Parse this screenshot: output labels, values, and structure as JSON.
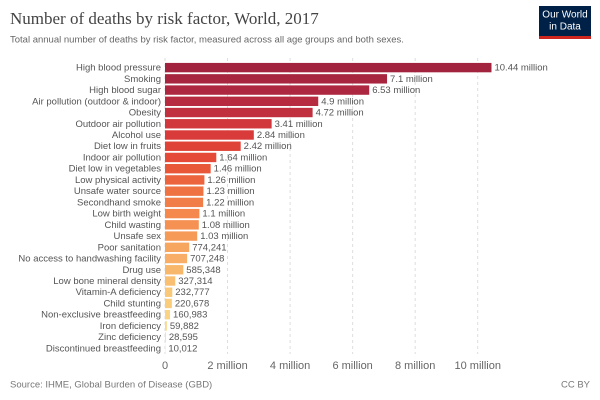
{
  "chart_data": {
    "type": "hbar",
    "title": "Number of deaths by risk factor, World, 2017",
    "subtitle": "Total annual number of deaths by risk factor, measured across all age groups and both sexes.",
    "source": "Source: IHME, Global Burden of Disease (GBD)",
    "license": "CC BY",
    "logo": [
      "Our World",
      "in Data"
    ],
    "categories": [
      "High blood pressure",
      "Smoking",
      "High blood sugar",
      "Air pollution (outdoor & indoor)",
      "Obesity",
      "Outdoor air pollution",
      "Alcohol use",
      "Diet low in fruits",
      "Indoor air pollution",
      "Diet low in vegetables",
      "Low physical activity",
      "Unsafe water source",
      "Secondhand smoke",
      "Low birth weight",
      "Child wasting",
      "Unsafe sex",
      "Poor sanitation",
      "No access to handwashing facility",
      "Drug use",
      "Low bone mineral density",
      "Vitamin-A deficiency",
      "Child stunting",
      "Non-exclusive breastfeeding",
      "Iron deficiency",
      "Zinc deficiency",
      "Discontinued breastfeeding"
    ],
    "values": [
      10440000,
      7100000,
      6530000,
      4900000,
      4720000,
      3410000,
      2840000,
      2420000,
      1640000,
      1460000,
      1260000,
      1230000,
      1220000,
      1100000,
      1080000,
      1030000,
      774241,
      707248,
      585348,
      327314,
      232777,
      220678,
      160983,
      59882,
      28595,
      10012
    ],
    "value_labels": [
      "10.44 million",
      "7.1 million",
      "6.53 million",
      "4.9 million",
      "4.72 million",
      "3.41 million",
      "2.84 million",
      "2.42 million",
      "1.64 million",
      "1.46 million",
      "1.26 million",
      "1.23 million",
      "1.22 million",
      "1.1 million",
      "1.08 million",
      "1.03 million",
      "774,241",
      "707,248",
      "585,348",
      "327,314",
      "232,777",
      "220,678",
      "160,983",
      "59,882",
      "28,595",
      "10,012"
    ],
    "colors": [
      "#a2233e",
      "#a8253f",
      "#ad2740",
      "#b72b41",
      "#c0303f",
      "#d1383d",
      "#d93a3a",
      "#df4237",
      "#e44a37",
      "#e85738",
      "#ec643e",
      "#ef7242",
      "#f17e48",
      "#f4884d",
      "#f59152",
      "#f69a58",
      "#f7a65f",
      "#f8ae66",
      "#f8b86c",
      "#f9c073",
      "#f9c879",
      "#facd7d",
      "#fad383",
      "#fbd98a",
      "#fbdd90",
      "#fbe096"
    ],
    "xlim": [
      0,
      11000000
    ],
    "xticks": [
      0,
      {
        "value": 2000000,
        "label": "2 million"
      },
      {
        "value": 4000000,
        "label": "4 million"
      },
      {
        "value": 6000000,
        "label": "6 million"
      },
      {
        "value": 8000000,
        "label": "8 million"
      },
      {
        "value": 10000000,
        "label": "10 million"
      }
    ],
    "grid": true
  }
}
